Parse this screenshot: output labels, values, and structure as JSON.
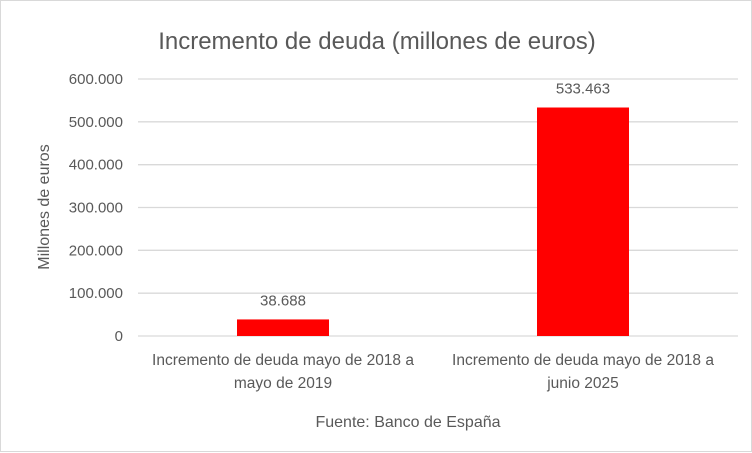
{
  "chart_data": {
    "type": "bar",
    "title": "Incremento de deuda (millones de euros)",
    "ylabel": "Millones de euros",
    "xlabel": "Fuente: Banco de España",
    "categories": [
      [
        "Incremento de deuda mayo de 2018 a",
        "mayo de 2019"
      ],
      [
        "Incremento de deuda mayo de 2018 a",
        "junio 2025"
      ]
    ],
    "values": [
      38688,
      533463
    ],
    "data_labels": [
      "38.688",
      "533.463"
    ],
    "ylim": [
      0,
      600000
    ],
    "yticks": [
      0,
      100000,
      200000,
      300000,
      400000,
      500000,
      600000
    ],
    "ytick_labels": [
      "0",
      "100.000",
      "200.000",
      "300.000",
      "400.000",
      "500.000",
      "600.000"
    ],
    "grid": true,
    "legend": "none",
    "bar_color": "#FF0000"
  }
}
